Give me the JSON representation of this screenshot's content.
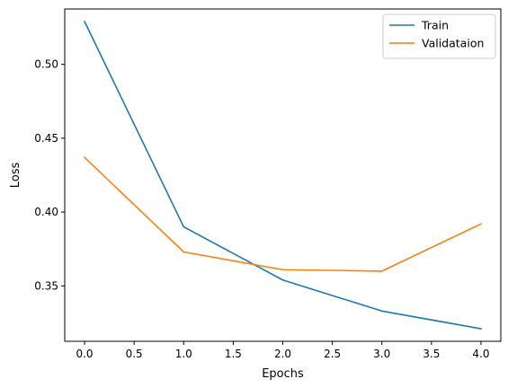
{
  "chart_data": {
    "type": "line",
    "title": "",
    "xlabel": "Epochs",
    "ylabel": "Loss",
    "xlim": [
      -0.2,
      4.2
    ],
    "ylim": [
      0.3125,
      0.5375
    ],
    "xticks": [
      0.0,
      0.5,
      1.0,
      1.5,
      2.0,
      2.5,
      3.0,
      3.5,
      4.0
    ],
    "xtick_labels": [
      "0.0",
      "0.5",
      "1.0",
      "1.5",
      "2.0",
      "2.5",
      "3.0",
      "3.5",
      "4.0"
    ],
    "yticks": [
      0.35,
      0.4,
      0.45,
      0.5
    ],
    "ytick_labels": [
      "0.35",
      "0.40",
      "0.45",
      "0.50"
    ],
    "grid": false,
    "legend_position": "top-right",
    "x": [
      0,
      1,
      2,
      3,
      4
    ],
    "series": [
      {
        "name": "Train",
        "color": "#1f77b4",
        "values": [
          0.529,
          0.39,
          0.354,
          0.333,
          0.321
        ]
      },
      {
        "name": "Validataion",
        "color": "#ff7f0e",
        "values": [
          0.437,
          0.373,
          0.361,
          0.36,
          0.392
        ]
      }
    ]
  }
}
